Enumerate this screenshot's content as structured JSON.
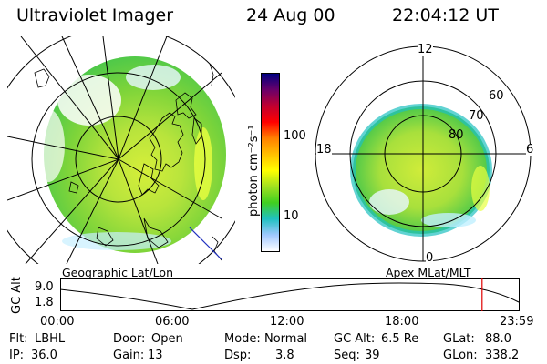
{
  "header": {
    "instrument": "Ultraviolet Imager",
    "date": "24 Aug 00",
    "time": "22:04:12 UT"
  },
  "colorbar": {
    "unit_label": "photon cm⁻²s⁻¹",
    "ticks": [
      "100",
      "10"
    ],
    "colors": [
      "#000080",
      "#6a006a",
      "#c00030",
      "#ff0000",
      "#ff8000",
      "#ffc000",
      "#ffff00",
      "#a0e020",
      "#40d020",
      "#20c0c0",
      "#a0c8ff",
      "#ffffff"
    ]
  },
  "geo_panel": {
    "caption": "Geographic Lat/Lon"
  },
  "polar_panel": {
    "caption": "Apex MLat/MLT",
    "mlt_labels": {
      "top": "12",
      "left": "18",
      "right": "6",
      "bottom": "0"
    },
    "lat_labels": [
      "60",
      "70",
      "80"
    ]
  },
  "timeline": {
    "y_label": "GC Alt",
    "y_ticks": [
      "9.0",
      "1.8"
    ],
    "x_ticks": [
      "00:00",
      "06:00",
      "12:00",
      "18:00",
      "23:59"
    ],
    "marker_time": "22:04",
    "marker_color": "#e00000"
  },
  "footer": {
    "rows": [
      [
        {
          "key": "Flt:",
          "value": "LBHL"
        },
        {
          "key": "Door:",
          "value": "Open"
        },
        {
          "key": "Mode:",
          "value": "Normal"
        },
        {
          "key": "GC Alt:",
          "value": "6.5 Re"
        },
        {
          "key": "GLat:",
          "value": "88.0"
        }
      ],
      [
        {
          "key": "IP:",
          "value": "36.0"
        },
        {
          "key": "Gain:",
          "value": "13"
        },
        {
          "key": "Dsp:",
          "value": "3.8"
        },
        {
          "key": "Seq:",
          "value": "39"
        },
        {
          "key": "GLon:",
          "value": "338.2"
        }
      ]
    ]
  }
}
